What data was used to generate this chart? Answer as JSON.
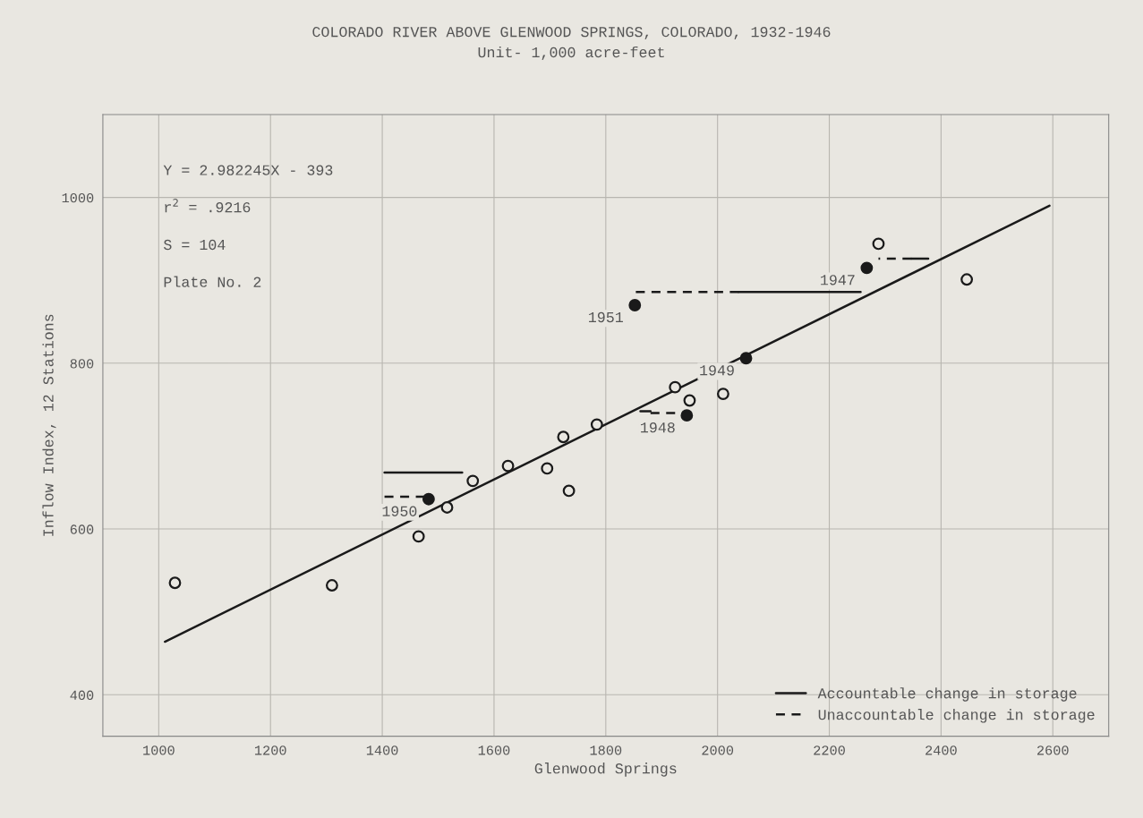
{
  "chart_data": {
    "type": "scatter",
    "title": "COLORADO RIVER ABOVE GLENWOOD SPRINGS, COLORADO, 1932-1946",
    "subtitle": "Unit- 1,000 acre-feet",
    "xlabel": "Glenwood Springs",
    "ylabel": "Inflow Index, 12 Stations",
    "xlim": [
      900,
      2700
    ],
    "ylim": [
      350,
      1100
    ],
    "xticks": [
      1000,
      1200,
      1400,
      1600,
      1800,
      2000,
      2200,
      2400,
      2600
    ],
    "yticks": [
      400,
      600,
      800,
      1000
    ],
    "grid": true,
    "legend": "lower right",
    "marker": "circle",
    "series": [
      {
        "color": "#e9e7e1",
        "x": [
          1029,
          1310,
          1465,
          1516,
          1562,
          1625,
          1695,
          1724,
          1734,
          1784,
          1924,
          1950,
          2010,
          2288,
          2446
        ],
        "values": [
          535,
          532,
          591,
          626,
          658,
          676,
          673,
          711,
          646,
          726,
          771,
          755,
          763,
          944,
          901
        ]
      },
      {
        "color": "#1a1a1a",
        "x": [
          2267,
          1945,
          2051,
          1483,
          1852
        ],
        "values": [
          915,
          737,
          806,
          636,
          870
        ]
      },
      {
        "type": "line",
        "color": "#1a1a1a",
        "line_style": "solid",
        "marker": "none",
        "x": [
          1011,
          2594
        ],
        "values": [
          464,
          990
        ]
      },
      {
        "type": "line",
        "name": "Accountable change in storage",
        "color": "#1a1a1a",
        "line_style": "solid",
        "marker": "none",
        "x": [
          1543,
          1404,
          null,
          1862,
          1880,
          null,
          2256,
          2038,
          null,
          2377,
          2347
        ],
        "values": [
          668,
          668,
          null,
          742,
          742,
          null,
          886,
          886,
          null,
          926,
          926
        ]
      },
      {
        "type": "line",
        "name": "Unaccountable change in storage",
        "color": "#1a1a1a",
        "line_style": "dashed",
        "marker": "none",
        "x": [
          1404,
          1480,
          null,
          1880,
          1935,
          null,
          2038,
          1853,
          null,
          2347,
          2288
        ],
        "values": [
          639,
          639,
          null,
          740,
          740,
          null,
          886,
          886,
          null,
          926,
          926
        ]
      }
    ],
    "annotations": [
      "Y = 2.982245X - 393",
      "r$^{2}$ = .9216",
      "S = 104",
      "Plate No. 2",
      {
        "text": "1947",
        "x": 2267,
        "y": 915
      },
      {
        "text": "1948",
        "x": 1945,
        "y": 737
      },
      {
        "text": "1949",
        "x": 2051,
        "y": 806
      },
      {
        "text": "1950",
        "x": 1483,
        "y": 636
      },
      {
        "text": "1951",
        "x": 1852,
        "y": 870
      }
    ]
  }
}
